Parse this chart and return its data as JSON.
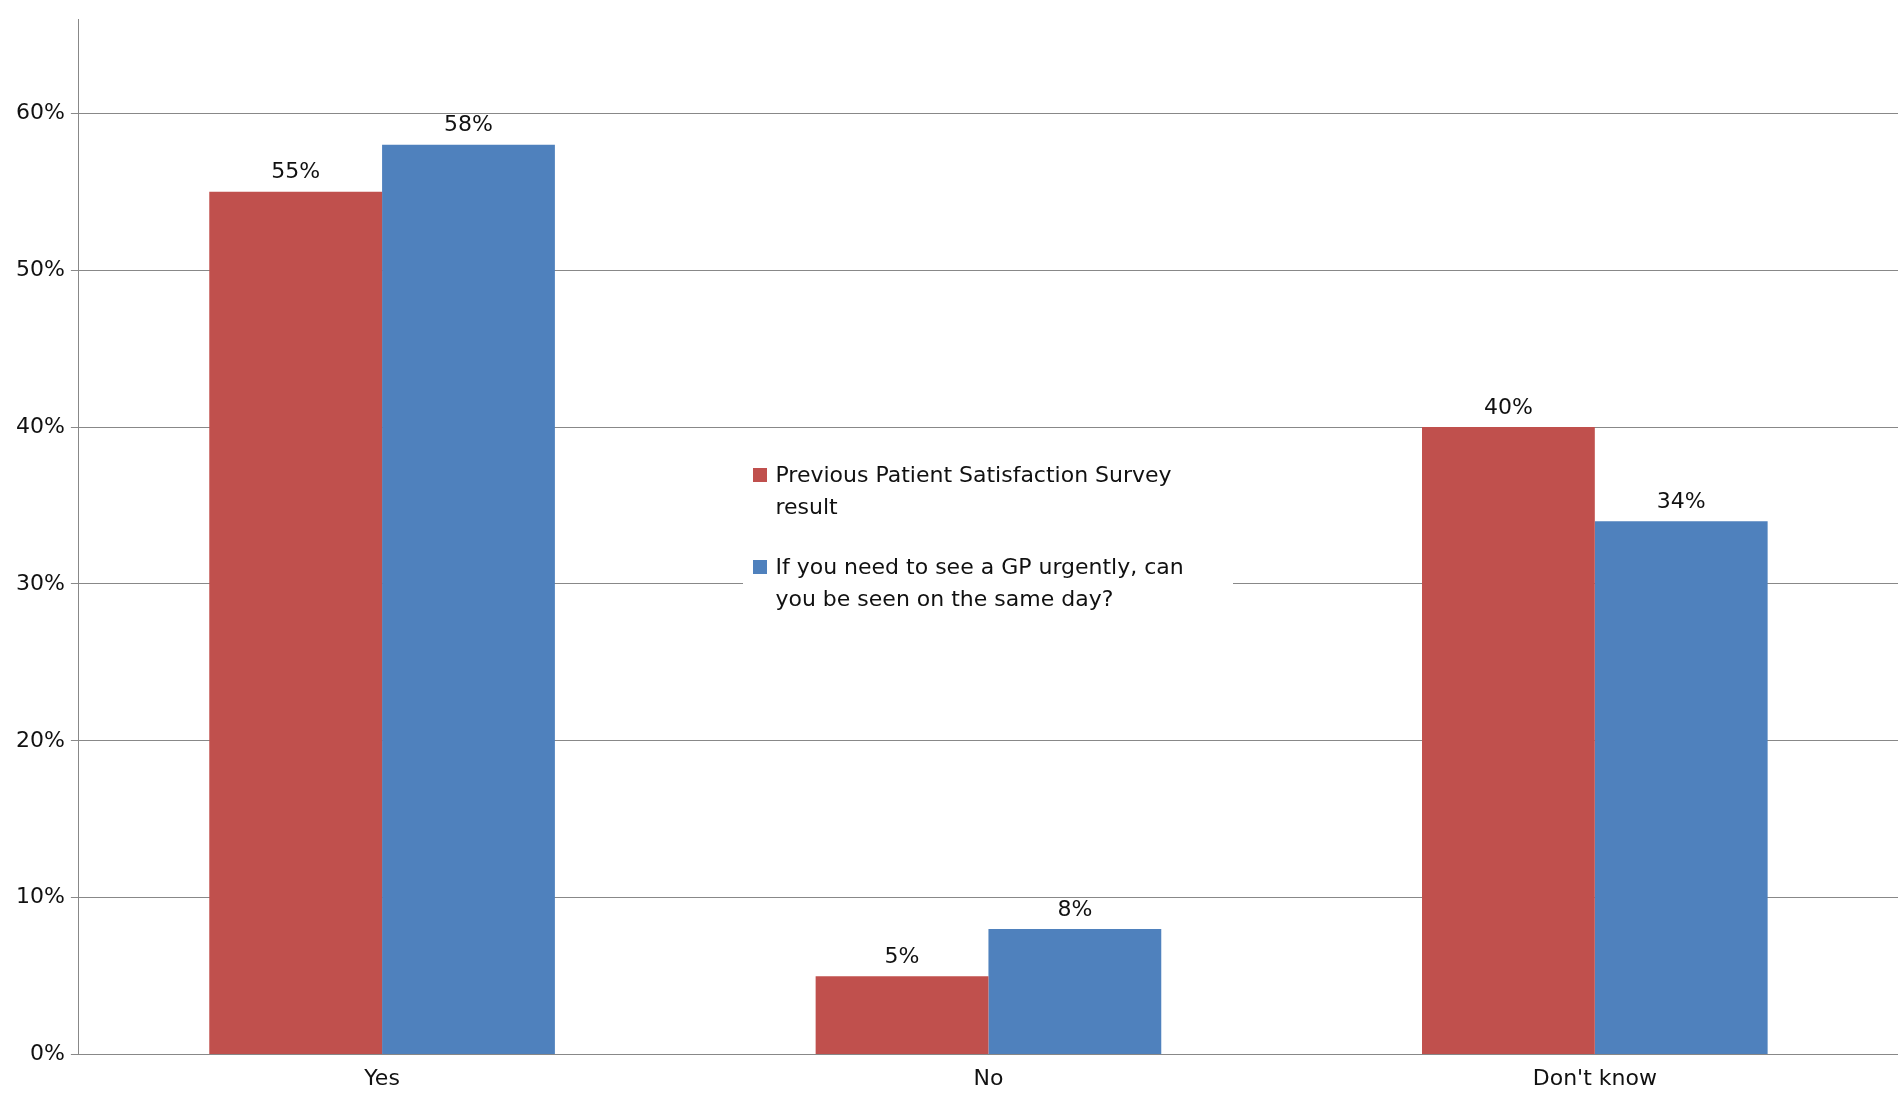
{
  "chart_data": {
    "type": "bar",
    "categories": [
      "Yes",
      "No",
      "Don't know"
    ],
    "series": [
      {
        "name": "Previous Patient Satisfaction Survey result",
        "color": "#c0504d",
        "values": [
          55,
          5,
          40
        ]
      },
      {
        "name": "If you need to see a GP urgently, can you be seen on the same day?",
        "color": "#4f81bd",
        "values": [
          58,
          8,
          34
        ]
      }
    ],
    "ylim": [
      0,
      66
    ],
    "yticks": [
      {
        "value": 0,
        "label": "0%"
      },
      {
        "value": 10,
        "label": "10%"
      },
      {
        "value": 20,
        "label": "20%"
      },
      {
        "value": 30,
        "label": "30%"
      },
      {
        "value": 40,
        "label": "40%"
      },
      {
        "value": 50,
        "label": "50%"
      },
      {
        "value": 60,
        "label": "60%"
      }
    ],
    "value_labels": [
      "55%",
      "5%",
      "40%",
      "58%",
      "8%",
      "34%"
    ],
    "grid": "y",
    "legend": "center"
  }
}
